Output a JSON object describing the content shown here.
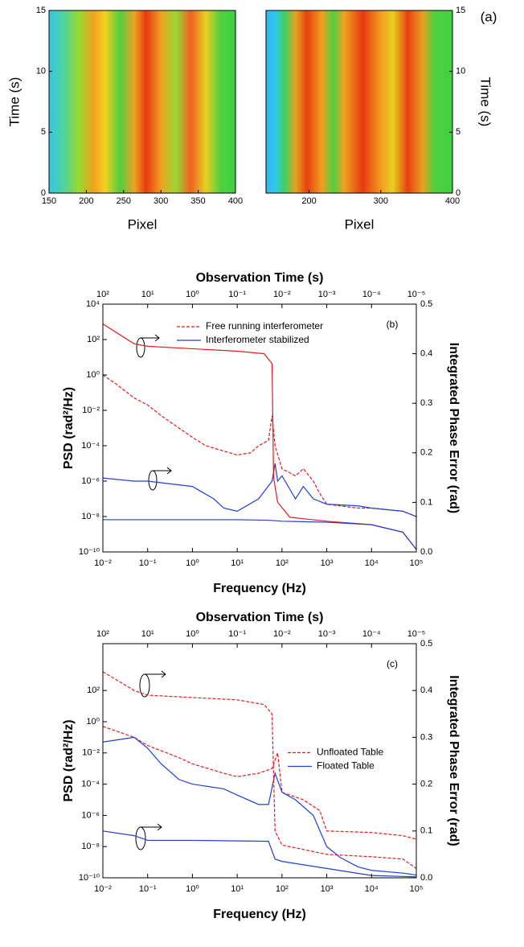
{
  "chart_data": [
    {
      "type": "heatmap",
      "x_label": "Pixel",
      "y_label": "Time (s)",
      "y_axis_side": "left",
      "xlim": [
        150,
        400
      ],
      "xticks": [
        150,
        200,
        250,
        300,
        350,
        400
      ],
      "ylim": [
        0,
        15
      ],
      "yticks": [
        0,
        5,
        10,
        15
      ]
    },
    {
      "type": "heatmap",
      "x_label": "Pixel",
      "y_label": "Time (s)",
      "y_axis_side": "right",
      "panel_label": "(a)",
      "xlim": [
        140,
        400
      ],
      "xticks": [
        200,
        300,
        400
      ],
      "ylim": [
        0,
        15
      ],
      "yticks": [
        0,
        5,
        10,
        15
      ]
    },
    {
      "type": "line",
      "panel_label": "(b)",
      "x_label": "Frequency (Hz)",
      "x2_label": "Observation Time (s)",
      "y_label": "PSD (rad²/Hz)",
      "y2_label": "Integrated Phase Error (rad)",
      "log_x": true,
      "log_y": true,
      "legend_position": "upper center",
      "xlim": [
        0.01,
        100000
      ],
      "xticks": [
        {
          "value": 0.01,
          "label": "10⁻²"
        },
        {
          "value": 0.1,
          "label": "10⁻¹"
        },
        {
          "value": 1,
          "label": "10⁰"
        },
        {
          "value": 10,
          "label": "10¹"
        },
        {
          "value": 100,
          "label": "10²"
        },
        {
          "value": 1000,
          "label": "10³"
        },
        {
          "value": 10000,
          "label": "10⁴"
        },
        {
          "value": 100000,
          "label": "10⁵"
        }
      ],
      "x2lim": [
        100,
        1e-05
      ],
      "x2ticks": [
        {
          "value": 100,
          "label": "10²"
        },
        {
          "value": 10,
          "label": "10¹"
        },
        {
          "value": 1,
          "label": "10⁰"
        },
        {
          "value": 0.1,
          "label": "10⁻¹"
        },
        {
          "value": 0.01,
          "label": "10⁻²"
        },
        {
          "value": 0.001,
          "label": "10⁻³"
        },
        {
          "value": 0.0001,
          "label": "10⁻⁴"
        },
        {
          "value": 1e-05,
          "label": "10⁻⁵"
        }
      ],
      "ylim": [
        1e-10,
        10000
      ],
      "yticks": [
        {
          "value": 1e-10,
          "label": "10⁻¹⁰"
        },
        {
          "value": 1e-08,
          "label": "10⁻⁸"
        },
        {
          "value": 1e-06,
          "label": "10⁻⁶"
        },
        {
          "value": 0.0001,
          "label": "10⁻⁴"
        },
        {
          "value": 0.01,
          "label": "10⁻²"
        },
        {
          "value": 1,
          "label": "10⁰"
        },
        {
          "value": 100,
          "label": "10²"
        },
        {
          "value": 10000,
          "label": "10⁴"
        }
      ],
      "y2lim": [
        0,
        0.5
      ],
      "y2ticks": [
        {
          "value": 0,
          "label": "0.0"
        },
        0.1,
        0.2,
        0.3,
        0.4,
        0.5
      ],
      "series": [
        {
          "name": "Free running interferometer",
          "color": "#e31a1c",
          "dash": true,
          "x": [
            0.01,
            0.02,
            0.05,
            0.1,
            0.2,
            0.5,
            1,
            2,
            5,
            10,
            20,
            30,
            50,
            60,
            70,
            100,
            200,
            300,
            500,
            700,
            1000,
            2000,
            5000,
            10000,
            20000,
            50000,
            100000
          ],
          "values": [
            1,
            0.3,
            0.05,
            0.02,
            0.005,
            0.001,
            0.0003,
            0.0001,
            5e-05,
            3e-05,
            4e-05,
            0.0001,
            0.0002,
            0.005,
            0.0001,
            5e-06,
            2e-06,
            5e-06,
            1e-06,
            2e-07,
            5e-08,
            4e-08,
            3e-08,
            3e-08,
            2.5e-08,
            2e-08,
            1e-08
          ]
        },
        {
          "name": "Interferometer stabilized",
          "color": "#1f3fd6",
          "dash": false,
          "x": [
            0.01,
            0.05,
            0.1,
            1,
            3,
            5,
            10,
            30,
            60,
            70,
            80,
            100,
            200,
            300,
            500,
            1000,
            5000,
            10000,
            50000,
            100000
          ],
          "values": [
            1.5e-06,
            1e-06,
            1e-06,
            5e-07,
            1e-07,
            3e-08,
            2e-08,
            1e-07,
            1e-06,
            1e-05,
            1e-06,
            2e-06,
            1e-07,
            5e-07,
            1e-07,
            5e-08,
            4e-08,
            3e-08,
            2e-08,
            1e-08
          ]
        },
        {
          "color": "#e31a1c",
          "dash": false,
          "axis": "y2",
          "x": [
            0.01,
            0.05,
            0.1,
            1,
            10,
            40,
            60,
            65,
            80,
            150,
            1000,
            10000,
            50000,
            100000
          ],
          "values": [
            0.46,
            0.42,
            0.415,
            0.41,
            0.405,
            0.4,
            0.38,
            0.15,
            0.1,
            0.07,
            0.062,
            0.055,
            0.04,
            0.005
          ]
        },
        {
          "color": "#1f3fd6",
          "dash": false,
          "axis": "y2",
          "x": [
            0.01,
            10,
            50,
            100,
            1000,
            10000,
            50000,
            100000
          ],
          "values": [
            0.065,
            0.065,
            0.064,
            0.062,
            0.06,
            0.055,
            0.04,
            0.005
          ]
        }
      ]
    },
    {
      "type": "line",
      "panel_label": "(c)",
      "x_label": "Frequency (Hz)",
      "x2_label": "Observation Time (s)",
      "y_label": "PSD (rad²/Hz)",
      "y2_label": "Integrated Phase Error (rad)",
      "log_x": true,
      "log_y": true,
      "legend_position": "center right",
      "xlim": [
        0.01,
        100000
      ],
      "xticks": [
        {
          "value": 0.01,
          "label": "10⁻²"
        },
        {
          "value": 0.1,
          "label": "10⁻¹"
        },
        {
          "value": 1,
          "label": "10⁰"
        },
        {
          "value": 10,
          "label": "10¹"
        },
        {
          "value": 100,
          "label": "10²"
        },
        {
          "value": 1000,
          "label": "10³"
        },
        {
          "value": 10000,
          "label": "10⁴"
        },
        {
          "value": 100000,
          "label": "10⁵"
        }
      ],
      "x2lim": [
        100,
        1e-05
      ],
      "x2ticks": [
        {
          "value": 100,
          "label": "10²"
        },
        {
          "value": 10,
          "label": "10¹"
        },
        {
          "value": 1,
          "label": "10⁰"
        },
        {
          "value": 0.1,
          "label": "10⁻¹"
        },
        {
          "value": 0.01,
          "label": "10⁻²"
        },
        {
          "value": 0.001,
          "label": "10⁻³"
        },
        {
          "value": 0.0001,
          "label": "10⁻⁴"
        },
        {
          "value": 1e-05,
          "label": "10⁻⁵"
        }
      ],
      "ylim": [
        1e-10,
        100000
      ],
      "yticks": [
        {
          "value": 1e-10,
          "label": "10⁻¹⁰"
        },
        {
          "value": 1e-08,
          "label": "10⁻⁸"
        },
        {
          "value": 1e-06,
          "label": "10⁻⁶"
        },
        {
          "value": 0.0001,
          "label": "10⁻⁴"
        },
        {
          "value": 0.01,
          "label": "10⁻²"
        },
        {
          "value": 1,
          "label": "10⁰"
        },
        {
          "value": 100,
          "label": "10²"
        }
      ],
      "y2lim": [
        0,
        0.5
      ],
      "y2ticks": [
        {
          "value": 0,
          "label": "0.0"
        },
        0.1,
        0.2,
        0.3,
        0.4,
        0.5
      ],
      "series": [
        {
          "name": "Unfloated Table",
          "color": "#e31a1c",
          "dash": true,
          "x": [
            0.01,
            0.05,
            0.1,
            0.5,
            1,
            5,
            10,
            30,
            60,
            80,
            100,
            300,
            700,
            1000,
            10000,
            50000,
            100000
          ],
          "values": [
            0.5,
            0.1,
            0.03,
            0.005,
            0.002,
            0.0005,
            0.0003,
            0.0005,
            0.001,
            0.01,
            3e-05,
            1e-05,
            2e-06,
            1e-07,
            8e-08,
            5e-08,
            3e-08
          ]
        },
        {
          "name": "Floated Table",
          "color": "#1f3fd6",
          "dash": false,
          "x": [
            0.01,
            0.05,
            0.1,
            0.2,
            0.5,
            1,
            5,
            10,
            30,
            50,
            70,
            100,
            200,
            500,
            1000,
            2000,
            5000,
            10000,
            50000,
            100000
          ],
          "values": [
            0.05,
            0.1,
            0.02,
            0.002,
            0.0002,
            0.0001,
            5e-05,
            2e-05,
            5e-06,
            5e-06,
            0.0005,
            3e-05,
            1e-05,
            1e-06,
            1e-08,
            2e-09,
            5e-10,
            3e-10,
            2e-10,
            1.5e-10
          ]
        },
        {
          "color": "#e31a1c",
          "dash": true,
          "axis": "y2",
          "x": [
            0.01,
            0.05,
            0.1,
            1,
            10,
            40,
            60,
            70,
            100,
            1000,
            10000,
            50000,
            100000
          ],
          "values": [
            0.44,
            0.4,
            0.39,
            0.385,
            0.38,
            0.37,
            0.35,
            0.1,
            0.07,
            0.05,
            0.045,
            0.04,
            0.02
          ]
        },
        {
          "color": "#1f3fd6",
          "dash": false,
          "axis": "y2",
          "x": [
            0.01,
            0.05,
            0.1,
            1,
            50,
            70,
            100,
            1000,
            10000,
            100000
          ],
          "values": [
            0.1,
            0.09,
            0.08,
            0.08,
            0.078,
            0.04,
            0.035,
            0.02,
            0.005,
            0.002
          ]
        }
      ]
    }
  ]
}
